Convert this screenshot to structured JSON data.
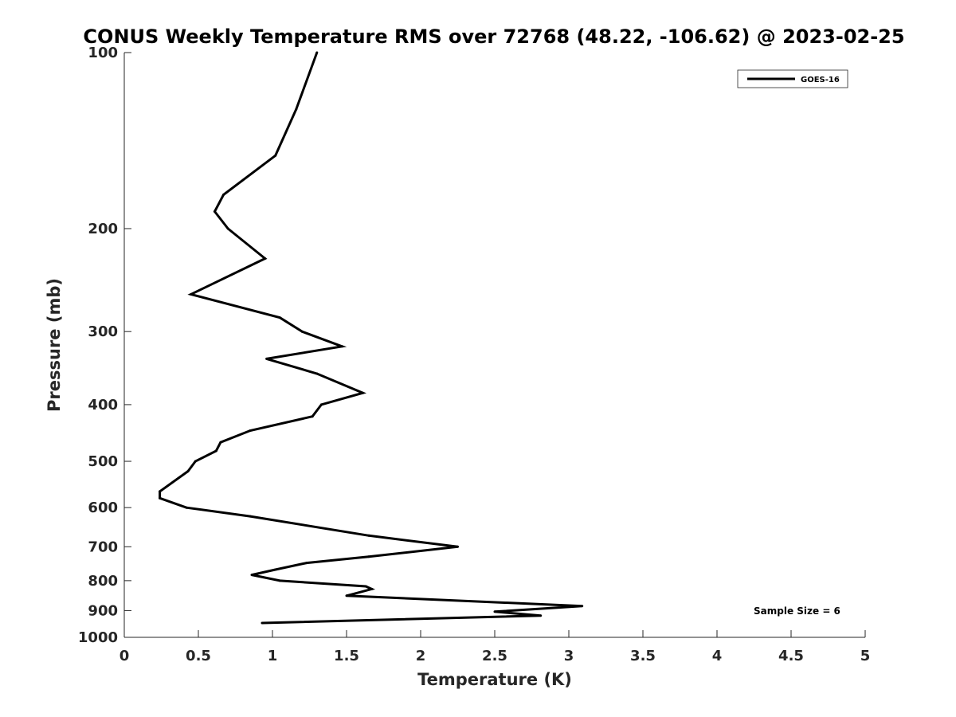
{
  "chart_data": {
    "type": "line",
    "title": "CONUS Weekly Temperature RMS over 72768 (48.22, -106.62) @ 2023-02-25",
    "xlabel": "Temperature (K)",
    "ylabel": "Pressure (mb)",
    "xlim": [
      0,
      5
    ],
    "ylim": [
      100,
      1000
    ],
    "y_scale": "log",
    "y_reversed": true,
    "x_ticks": [
      0,
      0.5,
      1,
      1.5,
      2,
      2.5,
      3,
      3.5,
      4,
      4.5,
      5
    ],
    "x_tick_labels": [
      "0",
      "0.5",
      "1",
      "1.5",
      "2",
      "2.5",
      "3",
      "3.5",
      "4",
      "4.5",
      "5"
    ],
    "y_ticks": [
      100,
      200,
      300,
      400,
      500,
      600,
      700,
      800,
      900,
      1000
    ],
    "y_tick_labels": [
      "100",
      "200",
      "300",
      "400",
      "500",
      "600",
      "700",
      "800",
      "900",
      "1000"
    ],
    "grid": false,
    "legend_position": "top-right",
    "series": [
      {
        "name": "GOES-16",
        "color": "#000000",
        "points": [
          {
            "x": 1.3,
            "p": 100
          },
          {
            "x": 1.16,
            "p": 125
          },
          {
            "x": 1.02,
            "p": 150
          },
          {
            "x": 0.67,
            "p": 175
          },
          {
            "x": 0.61,
            "p": 187
          },
          {
            "x": 0.7,
            "p": 200
          },
          {
            "x": 0.95,
            "p": 225
          },
          {
            "x": 0.45,
            "p": 259
          },
          {
            "x": 1.05,
            "p": 284
          },
          {
            "x": 1.2,
            "p": 300
          },
          {
            "x": 1.47,
            "p": 318
          },
          {
            "x": 0.96,
            "p": 334
          },
          {
            "x": 1.3,
            "p": 354
          },
          {
            "x": 1.61,
            "p": 382
          },
          {
            "x": 1.33,
            "p": 400
          },
          {
            "x": 1.27,
            "p": 419
          },
          {
            "x": 0.85,
            "p": 443
          },
          {
            "x": 0.65,
            "p": 464
          },
          {
            "x": 0.62,
            "p": 480
          },
          {
            "x": 0.48,
            "p": 500
          },
          {
            "x": 0.43,
            "p": 520
          },
          {
            "x": 0.24,
            "p": 563
          },
          {
            "x": 0.24,
            "p": 578
          },
          {
            "x": 0.42,
            "p": 600
          },
          {
            "x": 0.85,
            "p": 621
          },
          {
            "x": 1.65,
            "p": 670
          },
          {
            "x": 2.25,
            "p": 700
          },
          {
            "x": 1.65,
            "p": 728
          },
          {
            "x": 1.23,
            "p": 746
          },
          {
            "x": 1.02,
            "p": 766
          },
          {
            "x": 0.86,
            "p": 782
          },
          {
            "x": 1.05,
            "p": 800
          },
          {
            "x": 1.63,
            "p": 818
          },
          {
            "x": 1.67,
            "p": 827
          },
          {
            "x": 1.5,
            "p": 849
          },
          {
            "x": 3.09,
            "p": 884
          },
          {
            "x": 2.5,
            "p": 904
          },
          {
            "x": 2.81,
            "p": 918
          },
          {
            "x": 0.93,
            "p": 945
          }
        ]
      }
    ],
    "annotations": [
      {
        "text": "Sample Size = 6",
        "position": "bottom-right"
      }
    ]
  }
}
